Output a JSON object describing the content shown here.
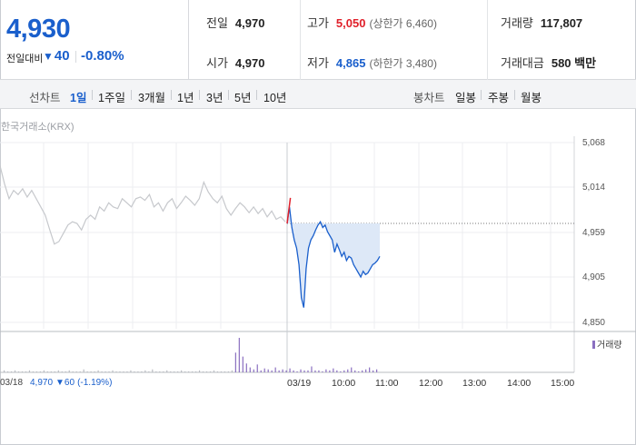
{
  "quote": {
    "price": "4,930",
    "change_label": "전일대비",
    "change_icon": "triangle-down",
    "change_value": "40",
    "change_percent": "-0.80%",
    "fields": {
      "prev_close_label": "전일",
      "prev_close": "4,970",
      "high_label": "고가",
      "high": "5,050",
      "upper_limit": "(상한가 6,460)",
      "volume_label": "거래량",
      "volume": "117,807",
      "open_label": "시가",
      "open": "4,970",
      "low_label": "저가",
      "low": "4,865",
      "lower_limit": "(하한가 3,480)",
      "amount_label": "거래대금",
      "amount": "580 백만"
    },
    "colors": {
      "up": "#e0202a",
      "down": "#1a5fcc"
    }
  },
  "periods": {
    "line_label": "선차트",
    "line_options": [
      "1일",
      "1주일",
      "3개월",
      "1년",
      "3년",
      "5년",
      "10년"
    ],
    "selected": "1일",
    "candle_label": "봉차트",
    "candle_options": [
      "일봉",
      "주봉",
      "월봉"
    ]
  },
  "chart": {
    "exchange": "한국거래소(KRX)",
    "y_ticks": [
      "5,068",
      "5,014",
      "4,959",
      "4,905",
      "4,850"
    ],
    "volume_legend": "거래량",
    "prev_day_date": "03/18",
    "prev_day_close": "4,970",
    "prev_day_change": "▼60",
    "prev_day_change_pct": "(-1.19%)",
    "today_date": "03/19",
    "time_ticks": [
      "10:00",
      "11:00",
      "12:00",
      "13:00",
      "14:00",
      "15:00"
    ]
  },
  "chart_data": {
    "type": "line",
    "y_range": [
      4850,
      5068
    ],
    "reference_price": 4970,
    "series": [
      {
        "values": [
          5040,
          5018,
          5000,
          5010,
          5005,
          5012,
          5002,
          5010,
          5000,
          4990,
          4980,
          4962,
          4945,
          4948,
          4958,
          4968,
          4972,
          4970,
          4962,
          4975,
          4980,
          4975,
          4990,
          4985,
          4995,
          4990,
          4988,
          5000,
          4995,
          4990,
          5000,
          5002,
          4998,
          5005,
          4990,
          4995,
          4985,
          4995,
          5000,
          4988,
          4995,
          5003,
          4998,
          4992,
          5000,
          5020,
          5008,
          5000,
          4995,
          5003,
          4988,
          4980,
          4988,
          4995,
          4990,
          4983,
          4990,
          4982,
          4988,
          4978,
          4985,
          4975,
          4978,
          4972
        ]
      },
      {
        "values": [
          4970,
          4990,
          4965,
          4950,
          4940,
          4920,
          4880,
          4868,
          4915,
          4940,
          4950,
          4955,
          4962,
          4968,
          4972,
          4965,
          4968,
          4960,
          4955,
          4950,
          4935,
          4945,
          4938,
          4930,
          4935,
          4925,
          4930,
          4928,
          4920,
          4915,
          4910,
          4905,
          4912,
          4908,
          4910,
          4915,
          4920,
          4922,
          4925,
          4930
        ]
      }
    ],
    "volume": [
      2,
      1,
      1,
      2,
      1,
      1,
      1,
      2,
      1,
      1,
      1,
      2,
      1,
      1,
      1,
      2,
      1,
      1,
      2,
      1,
      1,
      1,
      3,
      1,
      1,
      1,
      2,
      1,
      1,
      1,
      2,
      1,
      1,
      1,
      1,
      2,
      1,
      1,
      1,
      2,
      1,
      3,
      1,
      1,
      1,
      2,
      1,
      1,
      1,
      2,
      1,
      1,
      1,
      1,
      2,
      1,
      1,
      1,
      2,
      1,
      1,
      1,
      1,
      2,
      20,
      35,
      16,
      9,
      5,
      3,
      8,
      2,
      4,
      3,
      2,
      5,
      2,
      3,
      2,
      4,
      2,
      1,
      3,
      2,
      2,
      6,
      2,
      2,
      1,
      3,
      2,
      4,
      2,
      1,
      2,
      3,
      5,
      2,
      1,
      2,
      3,
      5,
      2,
      3
    ]
  }
}
